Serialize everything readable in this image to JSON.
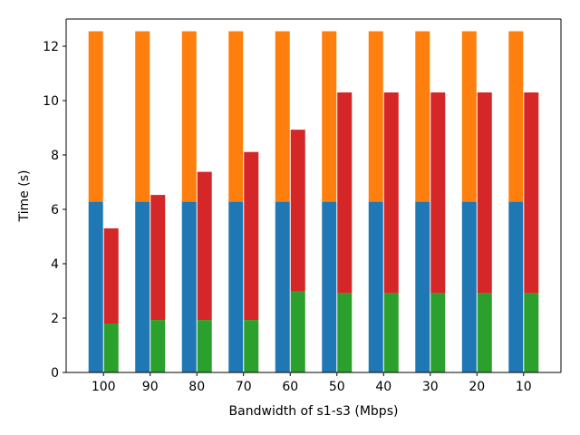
{
  "chart_data": {
    "type": "bar",
    "title": "",
    "xlabel": "Bandwidth of s1-s3 (Mbps)",
    "ylabel": "Time (s)",
    "ylim": [
      0,
      13
    ],
    "yticks": [
      0,
      2,
      4,
      6,
      8,
      10,
      12
    ],
    "grid": false,
    "legend": "none",
    "categories": [
      "100",
      "90",
      "80",
      "70",
      "60",
      "50",
      "40",
      "30",
      "20",
      "10"
    ],
    "stacks": [
      {
        "position": "left",
        "series": [
          {
            "color": "#1f77b4",
            "values": [
              6.28,
              6.28,
              6.28,
              6.28,
              6.28,
              6.28,
              6.28,
              6.28,
              6.28,
              6.28
            ]
          },
          {
            "color": "#ff7f0e",
            "values": [
              6.27,
              6.27,
              6.27,
              6.27,
              6.27,
              6.27,
              6.27,
              6.27,
              6.27,
              6.27
            ]
          }
        ]
      },
      {
        "position": "right",
        "series": [
          {
            "color": "#2ca02c",
            "values": [
              1.8,
              1.93,
              1.93,
              1.93,
              2.98,
              2.92,
              2.92,
              2.92,
              2.92,
              2.92
            ]
          },
          {
            "color": "#d62728",
            "values": [
              3.5,
              4.6,
              5.45,
              6.18,
              5.95,
              7.38,
              7.38,
              7.38,
              7.38,
              7.38
            ]
          }
        ]
      }
    ]
  }
}
